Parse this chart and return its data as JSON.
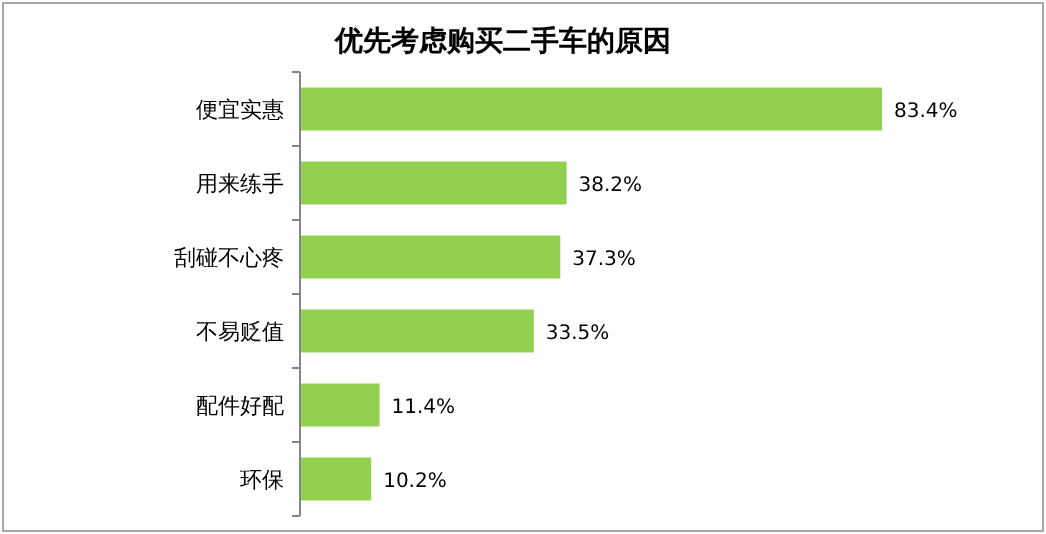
{
  "chart_data": {
    "type": "bar",
    "orientation": "horizontal",
    "title": "优先考虑购买二手车的原因",
    "categories": [
      "便宜实惠",
      "用来练手",
      "刮碰不心疼",
      "不易贬值",
      "配件好配",
      "环保"
    ],
    "values": [
      83.4,
      38.2,
      37.3,
      33.5,
      11.4,
      10.2
    ],
    "value_labels": [
      "83.4%",
      "38.2%",
      "37.3%",
      "33.5%",
      "11.4%",
      "10.2%"
    ],
    "color": "#92d050"
  }
}
